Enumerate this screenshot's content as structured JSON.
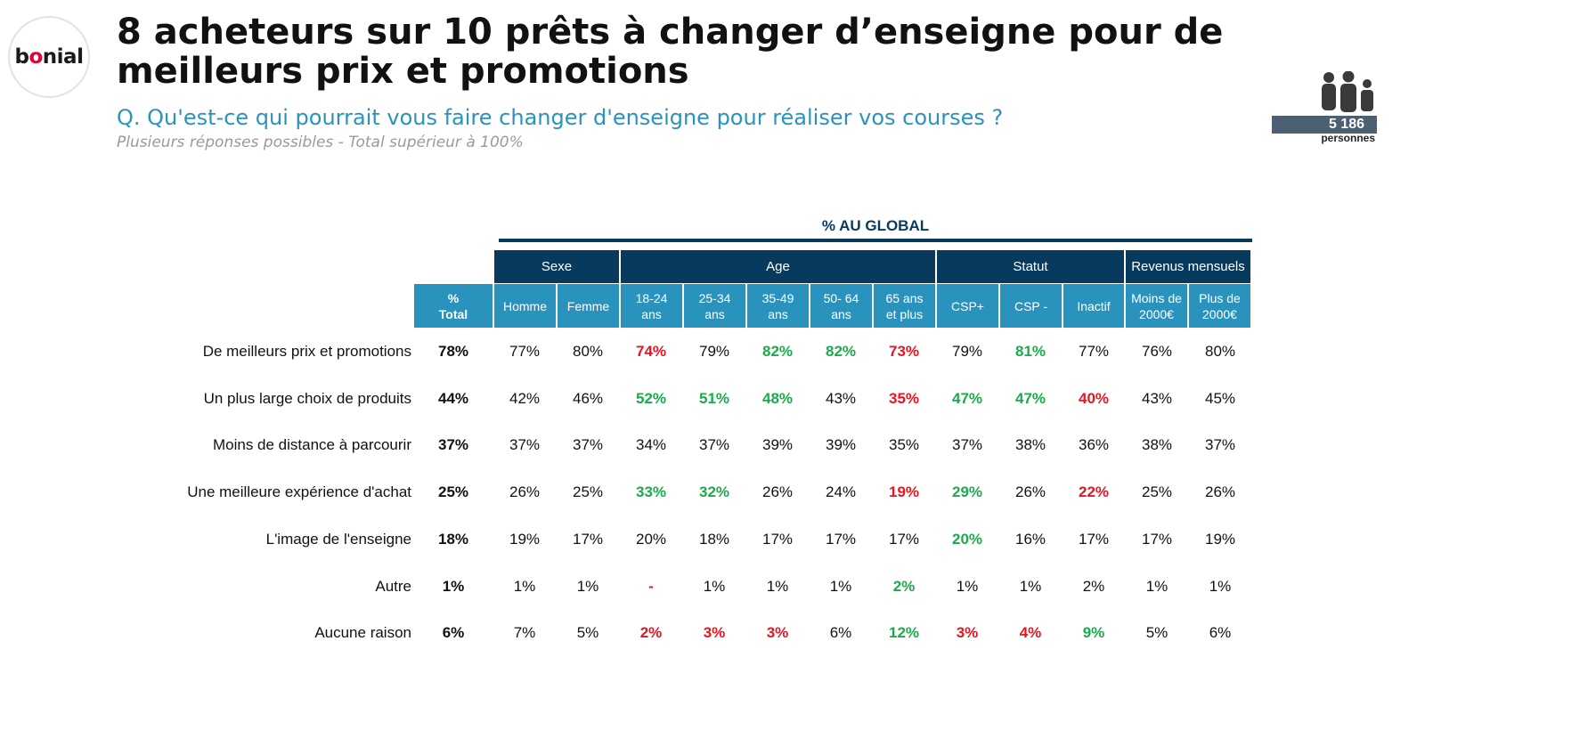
{
  "logo": {
    "pre": "b",
    "o": "o",
    "post": "nial"
  },
  "title": {
    "line1": "8 acheteurs sur 10 prêts à changer d’enseigne pour de",
    "line2": "meilleurs prix et promotions"
  },
  "question": "Q. Qu'est-ce qui pourrait vous faire changer d'enseigne pour réaliser vos courses ?",
  "note": "Plusieurs réponses possibles - Total supérieur à 100%",
  "sample": {
    "count": "5 186",
    "label": "personnes"
  },
  "global_title": "% AU GLOBAL",
  "groups": [
    {
      "label": "Sexe"
    },
    {
      "label": "Age"
    },
    {
      "label": "Statut"
    },
    {
      "label": "Revenus  mensuels"
    }
  ],
  "columns": [
    {
      "line1": "%",
      "line2": "Total"
    },
    {
      "line1": "Homme",
      "line2": ""
    },
    {
      "line1": "Femme",
      "line2": ""
    },
    {
      "line1": "18-24",
      "line2": "ans"
    },
    {
      "line1": "25-34",
      "line2": "ans"
    },
    {
      "line1": "35-49",
      "line2": "ans"
    },
    {
      "line1": "50- 64",
      "line2": "ans"
    },
    {
      "line1": "65 ans",
      "line2": "et plus"
    },
    {
      "line1": "CSP+",
      "line2": ""
    },
    {
      "line1": "CSP -",
      "line2": ""
    },
    {
      "line1": "Inactif",
      "line2": ""
    },
    {
      "line1": "Moins de",
      "line2": "2000€"
    },
    {
      "line1": "Plus de",
      "line2": "2000€"
    }
  ],
  "rows": [
    {
      "label": "De meilleurs prix et promotions",
      "values": [
        "78%",
        "77%",
        "80%",
        "74%",
        "79%",
        "82%",
        "82%",
        "73%",
        "79%",
        "81%",
        "77%",
        "76%",
        "80%"
      ],
      "status": [
        "t",
        "n",
        "n",
        "neg",
        "n",
        "pos",
        "pos",
        "neg",
        "n",
        "pos",
        "n",
        "n",
        "n"
      ]
    },
    {
      "label": "Un plus large choix de produits",
      "values": [
        "44%",
        "42%",
        "46%",
        "52%",
        "51%",
        "48%",
        "43%",
        "35%",
        "47%",
        "47%",
        "40%",
        "43%",
        "45%"
      ],
      "status": [
        "t",
        "n",
        "n",
        "pos",
        "pos",
        "pos",
        "n",
        "neg",
        "pos",
        "pos",
        "neg",
        "n",
        "n"
      ]
    },
    {
      "label": "Moins de distance à parcourir",
      "values": [
        "37%",
        "37%",
        "37%",
        "34%",
        "37%",
        "39%",
        "39%",
        "35%",
        "37%",
        "38%",
        "36%",
        "38%",
        "37%"
      ],
      "status": [
        "t",
        "n",
        "n",
        "n",
        "n",
        "n",
        "n",
        "n",
        "n",
        "n",
        "n",
        "n",
        "n"
      ]
    },
    {
      "label": "Une meilleure expérience d'achat",
      "values": [
        "25%",
        "26%",
        "25%",
        "33%",
        "32%",
        "26%",
        "24%",
        "19%",
        "29%",
        "26%",
        "22%",
        "25%",
        "26%"
      ],
      "status": [
        "t",
        "n",
        "n",
        "pos",
        "pos",
        "n",
        "n",
        "neg",
        "pos",
        "n",
        "neg",
        "n",
        "n"
      ]
    },
    {
      "label": "L'image de l'enseigne",
      "values": [
        "18%",
        "19%",
        "17%",
        "20%",
        "18%",
        "17%",
        "17%",
        "17%",
        "20%",
        "16%",
        "17%",
        "17%",
        "19%"
      ],
      "status": [
        "t",
        "n",
        "n",
        "n",
        "n",
        "n",
        "n",
        "n",
        "pos",
        "n",
        "n",
        "n",
        "n"
      ]
    },
    {
      "label": "Autre",
      "values": [
        "1%",
        "1%",
        "1%",
        "-",
        "1%",
        "1%",
        "1%",
        "2%",
        "1%",
        "1%",
        "2%",
        "1%",
        "1%"
      ],
      "status": [
        "t",
        "n",
        "n",
        "neg",
        "n",
        "n",
        "n",
        "pos",
        "n",
        "n",
        "n",
        "n",
        "n"
      ]
    },
    {
      "label": "Aucune raison",
      "values": [
        "6%",
        "7%",
        "5%",
        "2%",
        "3%",
        "3%",
        "6%",
        "12%",
        "3%",
        "4%",
        "9%",
        "5%",
        "6%"
      ],
      "status": [
        "t",
        "n",
        "n",
        "neg",
        "neg",
        "neg",
        "n",
        "pos",
        "neg",
        "neg",
        "pos",
        "n",
        "n"
      ]
    }
  ],
  "colors": {
    "navy": "#073a5c",
    "blue": "#2a93bd",
    "positive": "#1aab4b",
    "negative": "#e8141f",
    "brand": "#e4003b"
  }
}
